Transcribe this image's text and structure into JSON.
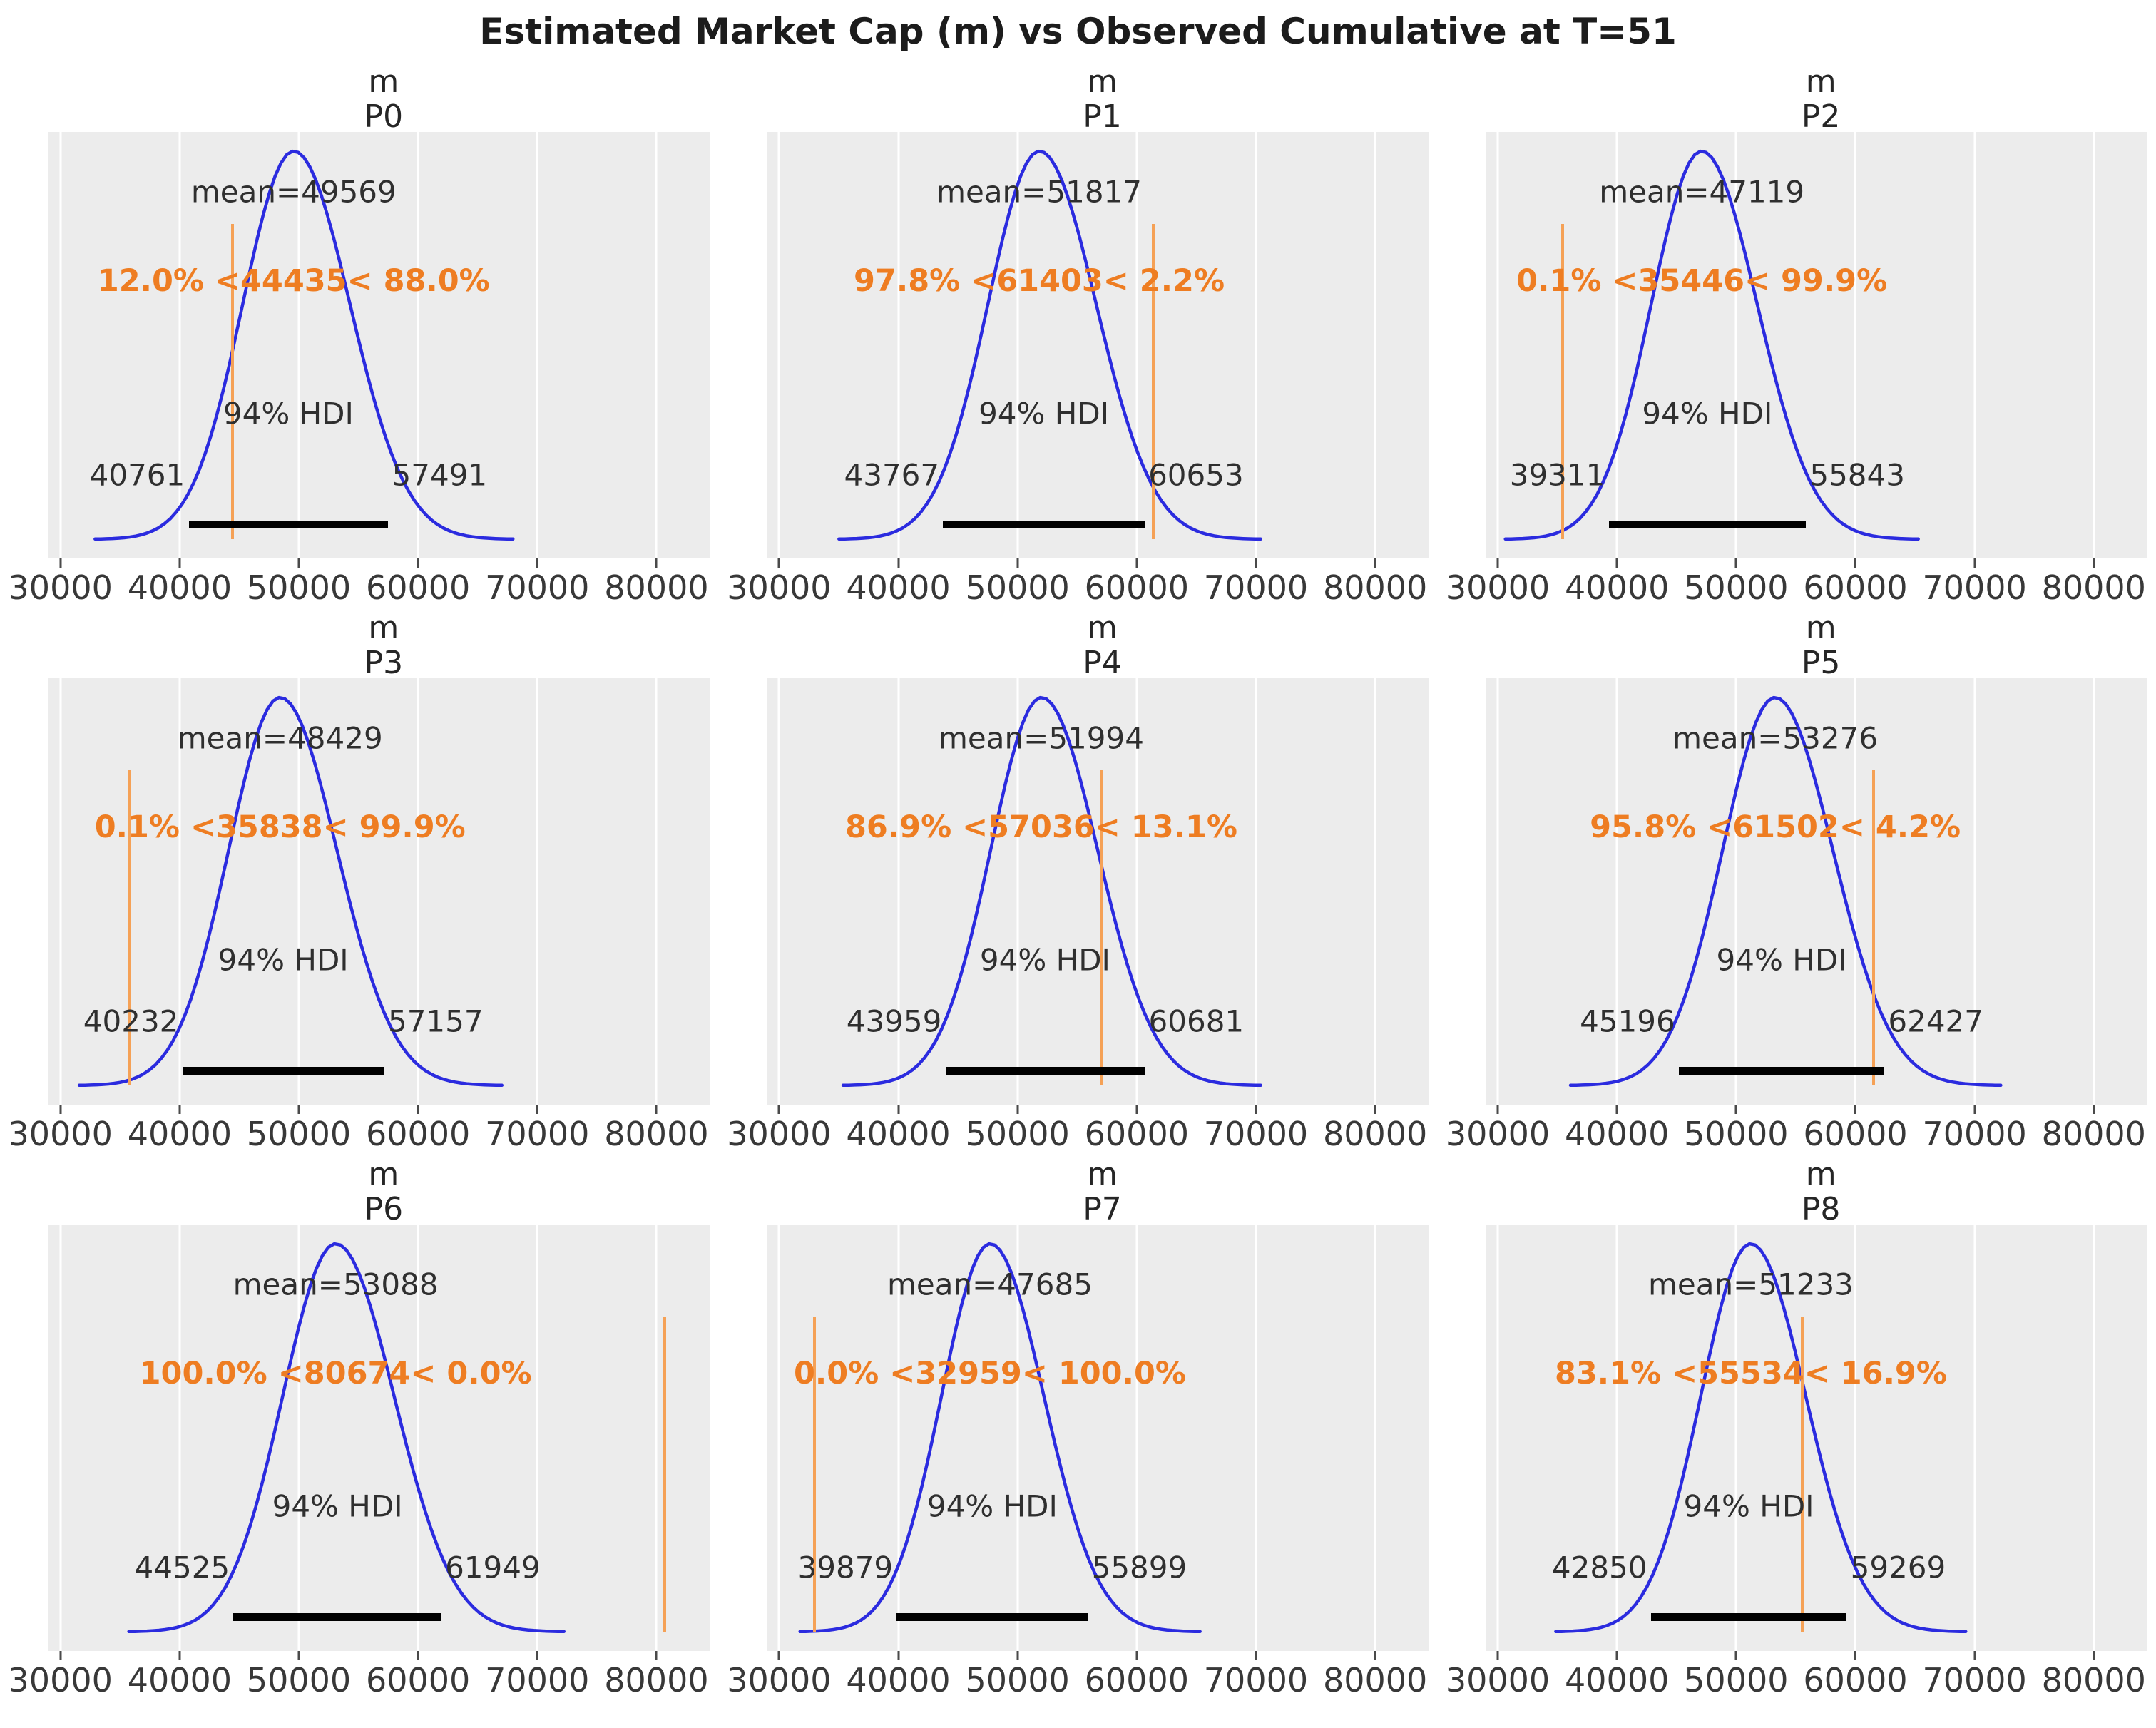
{
  "figure_title": "Estimated Market Cap (m) vs Observed Cumulative at T=51",
  "axis": {
    "tick_values": [
      30000,
      40000,
      50000,
      60000,
      70000,
      80000
    ],
    "tick_labels": [
      "30000",
      "40000",
      "50000",
      "60000",
      "70000",
      "80000"
    ],
    "xlim": [
      29000,
      84500
    ]
  },
  "colors": {
    "curve": "#2b2bdf",
    "ref_line": "#f5a156",
    "ref_text": "#ee7d22",
    "hdi_bar": "#000000",
    "axes_bg": "#ececec",
    "gridline": "#ffffff",
    "text": "#2f2f2f"
  },
  "chart_data": [
    {
      "type": "density",
      "variable": "m",
      "panel": "P0",
      "mean": 49569,
      "mean_label": "mean=49569",
      "ref_value": 44435,
      "pct_below": "12.0%",
      "pct_above": "88.0%",
      "ref_label": "12.0% <44435< 88.0%",
      "hdi_prob": "94%",
      "hdi_label": "94% HDI",
      "hdi_low": 40761,
      "hdi_high": 57491
    },
    {
      "type": "density",
      "variable": "m",
      "panel": "P1",
      "mean": 51817,
      "mean_label": "mean=51817",
      "ref_value": 61403,
      "pct_below": "97.8%",
      "pct_above": "2.2%",
      "ref_label": "97.8% <61403< 2.2%",
      "hdi_prob": "94%",
      "hdi_label": "94% HDI",
      "hdi_low": 43767,
      "hdi_high": 60653
    },
    {
      "type": "density",
      "variable": "m",
      "panel": "P2",
      "mean": 47119,
      "mean_label": "mean=47119",
      "ref_value": 35446,
      "pct_below": "0.1%",
      "pct_above": "99.9%",
      "ref_label": "0.1% <35446< 99.9%",
      "hdi_prob": "94%",
      "hdi_label": "94% HDI",
      "hdi_low": 39311,
      "hdi_high": 55843
    },
    {
      "type": "density",
      "variable": "m",
      "panel": "P3",
      "mean": 48429,
      "mean_label": "mean=48429",
      "ref_value": 35838,
      "pct_below": "0.1%",
      "pct_above": "99.9%",
      "ref_label": "0.1% <35838< 99.9%",
      "hdi_prob": "94%",
      "hdi_label": "94% HDI",
      "hdi_low": 40232,
      "hdi_high": 57157
    },
    {
      "type": "density",
      "variable": "m",
      "panel": "P4",
      "mean": 51994,
      "mean_label": "mean=51994",
      "ref_value": 57036,
      "pct_below": "86.9%",
      "pct_above": "13.1%",
      "ref_label": "86.9% <57036< 13.1%",
      "hdi_prob": "94%",
      "hdi_label": "94% HDI",
      "hdi_low": 43959,
      "hdi_high": 60681
    },
    {
      "type": "density",
      "variable": "m",
      "panel": "P5",
      "mean": 53276,
      "mean_label": "mean=53276",
      "ref_value": 61502,
      "pct_below": "95.8%",
      "pct_above": "4.2%",
      "ref_label": "95.8% <61502< 4.2%",
      "hdi_prob": "94%",
      "hdi_label": "94% HDI",
      "hdi_low": 45196,
      "hdi_high": 62427
    },
    {
      "type": "density",
      "variable": "m",
      "panel": "P6",
      "mean": 53088,
      "mean_label": "mean=53088",
      "ref_value": 80674,
      "pct_below": "100.0%",
      "pct_above": "0.0%",
      "ref_label": "100.0% <80674< 0.0%",
      "hdi_prob": "94%",
      "hdi_label": "94% HDI",
      "hdi_low": 44525,
      "hdi_high": 61949
    },
    {
      "type": "density",
      "variable": "m",
      "panel": "P7",
      "mean": 47685,
      "mean_label": "mean=47685",
      "ref_value": 32959,
      "pct_below": "0.0%",
      "pct_above": "100.0%",
      "ref_label": "0.0% <32959< 100.0%",
      "hdi_prob": "94%",
      "hdi_label": "94% HDI",
      "hdi_low": 39879,
      "hdi_high": 55899
    },
    {
      "type": "density",
      "variable": "m",
      "panel": "P8",
      "mean": 51233,
      "mean_label": "mean=51233",
      "ref_value": 55534,
      "pct_below": "83.1%",
      "pct_above": "16.9%",
      "ref_label": "83.1% <55534< 16.9%",
      "hdi_prob": "94%",
      "hdi_label": "94% HDI",
      "hdi_low": 42850,
      "hdi_high": 59269
    }
  ]
}
